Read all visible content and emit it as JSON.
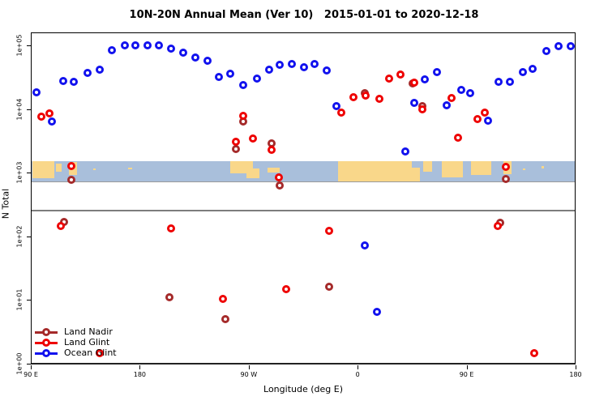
{
  "title": "10N-20N Annual Mean (Ver 10)   2015-01-01 to 2020-12-18",
  "chart_data": {
    "type": "scatter",
    "xlabel": "Longitude (deg E)",
    "ylabel": "N Total",
    "x_axis": {
      "range_deg": [
        90,
        540
      ],
      "ticks": [
        {
          "lon": 90,
          "label": "90 E"
        },
        {
          "lon": 180,
          "label": "180"
        },
        {
          "lon": 270,
          "label": "90 W"
        },
        {
          "lon": 360,
          "label": "0"
        },
        {
          "lon": 450,
          "label": "90 E"
        },
        {
          "lon": 540,
          "label": "180"
        }
      ]
    },
    "y_axis": {
      "scale": "log",
      "range": [
        1,
        100000
      ],
      "ticks": [
        {
          "value": 1,
          "label": "1e+00"
        },
        {
          "value": 10,
          "label": "1e+01"
        },
        {
          "value": 100,
          "label": "1e+02"
        },
        {
          "value": 1000,
          "label": "1e+03"
        },
        {
          "value": 10000,
          "label": "1e+04"
        },
        {
          "value": 100000,
          "label": "1e+05"
        }
      ]
    },
    "reference_line": {
      "value": 260,
      "color": "#7d7d7d"
    },
    "map_strip": {
      "description": "world coastline band 10N-20N",
      "top_value": 1550,
      "bottom_value": 755,
      "ocean_color": "#a9bfdb",
      "land_color": "#f9d78a",
      "land_segments": [
        {
          "lon0": 91,
          "lon1": 109,
          "top": 0.0,
          "bottom": 0.85
        },
        {
          "lon0": 110,
          "lon1": 114.5,
          "top": 0.1,
          "bottom": 0.5
        },
        {
          "lon0": 120.5,
          "lon1": 127.5,
          "top": 0.05,
          "bottom": 0.7
        },
        {
          "lon0": 141,
          "lon1": 143,
          "top": 0.35,
          "bottom": 0.45
        },
        {
          "lon0": 170,
          "lon1": 173,
          "top": 0.3,
          "bottom": 0.4
        },
        {
          "lon0": 254,
          "lon1": 273,
          "top": 0.0,
          "bottom": 0.6
        },
        {
          "lon0": 267.5,
          "lon1": 278,
          "top": 0.35,
          "bottom": 0.85
        },
        {
          "lon0": 285,
          "lon1": 295,
          "top": 0.3,
          "bottom": 0.55
        },
        {
          "lon0": 343,
          "lon1": 404,
          "top": 0.0,
          "bottom": 1.0
        },
        {
          "lon0": 403,
          "lon1": 411,
          "top": 0.3,
          "bottom": 1.0
        },
        {
          "lon0": 413.5,
          "lon1": 421,
          "top": 0.0,
          "bottom": 0.5
        },
        {
          "lon0": 429,
          "lon1": 446,
          "top": 0.0,
          "bottom": 0.8
        },
        {
          "lon0": 453,
          "lon1": 470,
          "top": 0.0,
          "bottom": 0.7
        },
        {
          "lon0": 480,
          "lon1": 486.5,
          "top": 0.0,
          "bottom": 0.65
        },
        {
          "lon0": 496,
          "lon1": 498,
          "top": 0.35,
          "bottom": 0.45
        },
        {
          "lon0": 511,
          "lon1": 513,
          "top": 0.25,
          "bottom": 0.35
        }
      ]
    },
    "legend": {
      "position": "bottom-left",
      "entries": [
        {
          "name": "Land Nadir",
          "color": "#a52a2a"
        },
        {
          "name": "Land Glint",
          "color": "#ee0000"
        },
        {
          "name": "Ocean Glint",
          "color": "#1212ee"
        }
      ]
    },
    "series": [
      {
        "name": "Land Nadir",
        "color": "#a52a2a",
        "points": [
          [
            117,
            174
          ],
          [
            123,
            800
          ],
          [
            204,
            11.4
          ],
          [
            250,
            5.2
          ],
          [
            259,
            2420
          ],
          [
            265,
            6600
          ],
          [
            288,
            2980
          ],
          [
            295,
            650
          ],
          [
            336,
            16.6
          ],
          [
            365,
            18300
          ],
          [
            405,
            26000
          ],
          [
            413,
            11450
          ],
          [
            477,
            168
          ],
          [
            482,
            820
          ]
        ]
      },
      {
        "name": "Land Glint",
        "color": "#ee0000",
        "points": [
          [
            98,
            7800
          ],
          [
            105,
            8750
          ],
          [
            114,
            150
          ],
          [
            123,
            1310
          ],
          [
            146,
            1.5
          ],
          [
            205,
            138
          ],
          [
            248,
            10.7
          ],
          [
            259,
            3160
          ],
          [
            265,
            8100
          ],
          [
            273,
            3550
          ],
          [
            288,
            2360
          ],
          [
            294,
            870
          ],
          [
            300,
            15.2
          ],
          [
            336,
            126
          ],
          [
            346,
            9100
          ],
          [
            356,
            15900
          ],
          [
            366,
            16700
          ],
          [
            377,
            14800
          ],
          [
            385,
            31000
          ],
          [
            395,
            35700
          ],
          [
            406,
            27000
          ],
          [
            413,
            10250
          ],
          [
            437,
            15400
          ],
          [
            442,
            3650
          ],
          [
            458,
            7200
          ],
          [
            464,
            9100
          ],
          [
            475,
            150
          ],
          [
            482,
            1270
          ],
          [
            505,
            1.5
          ]
        ]
      },
      {
        "name": "Ocean Glint",
        "color": "#1212ee",
        "points": [
          [
            94,
            18800
          ],
          [
            107,
            6600
          ],
          [
            116,
            28400
          ],
          [
            125,
            27700
          ],
          [
            136,
            38200
          ],
          [
            146,
            42800
          ],
          [
            156,
            86500
          ],
          [
            167,
            103000
          ],
          [
            176,
            103000
          ],
          [
            186,
            103000
          ],
          [
            195,
            103000
          ],
          [
            205,
            92000
          ],
          [
            215,
            79000
          ],
          [
            225,
            66300
          ],
          [
            235,
            59000
          ],
          [
            245,
            32800
          ],
          [
            254,
            37100
          ],
          [
            265,
            24600
          ],
          [
            276,
            31000
          ],
          [
            286,
            42800
          ],
          [
            295,
            51100
          ],
          [
            305,
            52400
          ],
          [
            315,
            46700
          ],
          [
            324,
            52400
          ],
          [
            334,
            41500
          ],
          [
            342,
            11450
          ],
          [
            365,
            74
          ],
          [
            375,
            6.7
          ],
          [
            399,
            2230
          ],
          [
            406,
            12900
          ],
          [
            415,
            30200
          ],
          [
            425,
            39100
          ],
          [
            433,
            11800
          ],
          [
            445,
            20500
          ],
          [
            452,
            18300
          ],
          [
            467,
            6760
          ],
          [
            476,
            27700
          ],
          [
            485,
            27700
          ],
          [
            496,
            39100
          ],
          [
            504,
            44000
          ],
          [
            515,
            83800
          ],
          [
            525,
            100000
          ],
          [
            535,
            100000
          ]
        ]
      }
    ]
  }
}
